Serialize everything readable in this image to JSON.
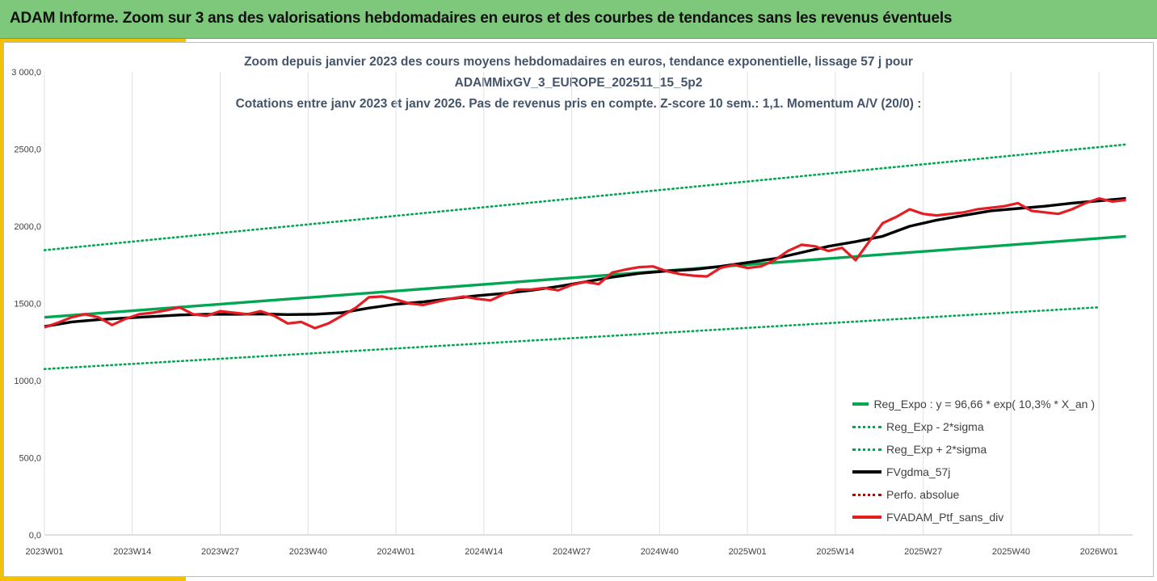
{
  "header": {
    "title": "ADAM Informe. Zoom sur 3 ans des valorisations hebdomadaires en euros et des courbes de tendances sans les revenus éventuels"
  },
  "colors": {
    "banner": "#7dc87a",
    "accent": "#f2c200",
    "trend": "#00a651",
    "smooth": "#000000",
    "portfolio": "#e31e24",
    "perfo": "#c00000"
  },
  "chart_data": {
    "type": "line",
    "title_lines": [
      "Zoom depuis janvier 2023 des cours moyens hebdomadaires  en euros, tendance exponentielle, lissage 57 j pour",
      "ADAMMixGV_3_EUROPE_202511_15_5p2",
      "Cotations  entre janv 2023 et janv 2026. Pas de revenus pris en compte. Z-score 10 sem.: 1,1. Momentum A/V (20/0) :"
    ],
    "xlabel": "",
    "ylabel": "",
    "ylim": [
      0,
      3000
    ],
    "y_ticks": [
      "0,0",
      "500,0",
      "1000,0",
      "1500,0",
      "2000,0",
      "2500,0",
      "3 000,0"
    ],
    "x_ticks": [
      "2023W01",
      "2023W14",
      "2023W27",
      "2023W40",
      "2024W01",
      "2024W14",
      "2024W27",
      "2024W40",
      "2025W01",
      "2025W14",
      "2025W27",
      "2025W40",
      "2026W01"
    ],
    "x_range_weeks": [
      0,
      161
    ],
    "grid": "vertical",
    "legend_position": "bottom-right",
    "series": [
      {
        "name": "Reg_Expo : y = 96,66 * exp( 10,3% *  X_an )",
        "style": "solid-thick",
        "color": "#00a651",
        "x": [
          0,
          160
        ],
        "y": [
          1410,
          1935
        ]
      },
      {
        "name": "Reg_Exp - 2*sigma",
        "style": "dotted",
        "color": "#00a651",
        "x": [
          0,
          156
        ],
        "y": [
          1075,
          1475
        ]
      },
      {
        "name": "Reg_Exp + 2*sigma",
        "style": "dotted",
        "color": "#00a651",
        "x": [
          0,
          160
        ],
        "y": [
          1845,
          2530
        ]
      },
      {
        "name": "FVgdma_57j",
        "style": "solid-thick",
        "color": "#000000",
        "x": [
          0,
          4,
          8,
          12,
          16,
          20,
          24,
          28,
          32,
          36,
          40,
          44,
          48,
          52,
          56,
          60,
          64,
          68,
          72,
          76,
          80,
          84,
          88,
          92,
          96,
          100,
          104,
          108,
          112,
          116,
          120,
          124,
          128,
          132,
          136,
          140,
          144,
          148,
          152,
          156,
          160
        ],
        "y": [
          1350,
          1380,
          1395,
          1405,
          1415,
          1425,
          1430,
          1430,
          1432,
          1428,
          1430,
          1440,
          1470,
          1495,
          1510,
          1530,
          1550,
          1565,
          1585,
          1610,
          1640,
          1670,
          1695,
          1710,
          1720,
          1740,
          1765,
          1790,
          1830,
          1870,
          1900,
          1935,
          2000,
          2040,
          2070,
          2100,
          2115,
          2130,
          2150,
          2165,
          2180
        ]
      },
      {
        "name": "Perfo. absolue",
        "style": "dotted",
        "color": "#c00000",
        "x": [],
        "y": []
      },
      {
        "name": "FVADAM_Ptf_sans_div",
        "style": "solid-thick",
        "color": "#e31e24",
        "x": [
          0,
          2,
          4,
          6,
          8,
          10,
          12,
          14,
          16,
          18,
          20,
          22,
          24,
          26,
          28,
          30,
          32,
          34,
          36,
          38,
          40,
          42,
          44,
          46,
          48,
          50,
          52,
          54,
          56,
          58,
          60,
          62,
          64,
          66,
          68,
          70,
          72,
          74,
          76,
          78,
          80,
          82,
          84,
          86,
          88,
          90,
          92,
          94,
          96,
          98,
          100,
          102,
          104,
          106,
          108,
          110,
          112,
          114,
          116,
          118,
          120,
          122,
          124,
          126,
          128,
          130,
          132,
          134,
          136,
          138,
          140,
          142,
          144,
          146,
          148,
          150,
          152,
          154,
          156,
          158,
          160
        ],
        "y": [
          1345,
          1375,
          1410,
          1430,
          1410,
          1360,
          1400,
          1430,
          1440,
          1455,
          1475,
          1430,
          1420,
          1450,
          1440,
          1430,
          1450,
          1420,
          1370,
          1380,
          1340,
          1370,
          1420,
          1470,
          1540,
          1545,
          1525,
          1500,
          1490,
          1510,
          1530,
          1545,
          1530,
          1520,
          1560,
          1590,
          1590,
          1600,
          1585,
          1620,
          1640,
          1625,
          1700,
          1720,
          1735,
          1740,
          1710,
          1690,
          1680,
          1675,
          1730,
          1750,
          1730,
          1740,
          1780,
          1840,
          1880,
          1870,
          1840,
          1860,
          1780,
          1900,
          2020,
          2060,
          2110,
          2080,
          2070,
          2080,
          2090,
          2110,
          2120,
          2130,
          2150,
          2100,
          2090,
          2080,
          2110,
          2150,
          2180,
          2160,
          2170
        ]
      }
    ]
  }
}
